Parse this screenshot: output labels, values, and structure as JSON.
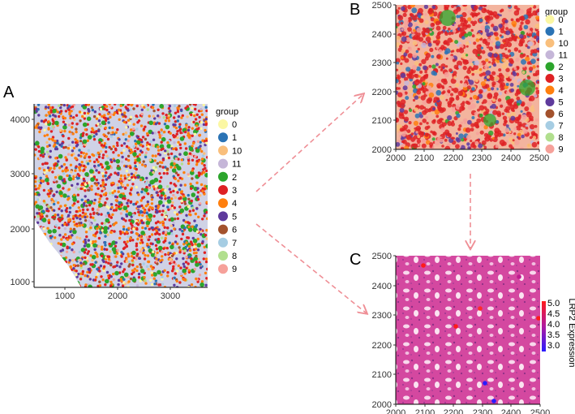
{
  "panels": {
    "A": {
      "letter": "A",
      "x_ticks": [
        "1000",
        "2000",
        "3000"
      ],
      "y_ticks": [
        "1000",
        "2000",
        "3000",
        "4000"
      ],
      "legend_title": "group"
    },
    "B": {
      "letter": "B",
      "x_ticks": [
        "2000",
        "2100",
        "2200",
        "2300",
        "2400",
        "2500"
      ],
      "y_ticks": [
        "2000",
        "2100",
        "2200",
        "2300",
        "2400",
        "2500"
      ],
      "legend_title": "group"
    },
    "C": {
      "letter": "C",
      "x_ticks": [
        "2000",
        "2100",
        "2200",
        "2300",
        "2400",
        "2500"
      ],
      "y_ticks": [
        "2000",
        "2100",
        "2200",
        "2300",
        "2400",
        "2500"
      ],
      "colorbar_title": "LRP2 Expression",
      "colorbar_ticks": [
        "5.0",
        "4.5",
        "4.0",
        "3.5",
        "3.0"
      ]
    }
  },
  "groups": [
    {
      "label": "0",
      "color": "#fbf7a3"
    },
    {
      "label": "1",
      "color": "#2a73b5"
    },
    {
      "label": "10",
      "color": "#f9bf7c"
    },
    {
      "label": "11",
      "color": "#c5b6d8"
    },
    {
      "label": "2",
      "color": "#2ca52c"
    },
    {
      "label": "3",
      "color": "#de2124"
    },
    {
      "label": "4",
      "color": "#ff7f0e"
    },
    {
      "label": "5",
      "color": "#5e3a9c"
    },
    {
      "label": "6",
      "color": "#a3522d"
    },
    {
      "label": "7",
      "color": "#a6cde3"
    },
    {
      "label": "8",
      "color": "#b1df8e"
    },
    {
      "label": "9",
      "color": "#f6a19a"
    }
  ],
  "colors": {
    "arrow": "#ef8f96",
    "tissue_pink": "#d94ba3",
    "tissue_light": "#f4cbe4",
    "expr_high": "#ff1a1a",
    "expr_low": "#2a1bff"
  }
}
